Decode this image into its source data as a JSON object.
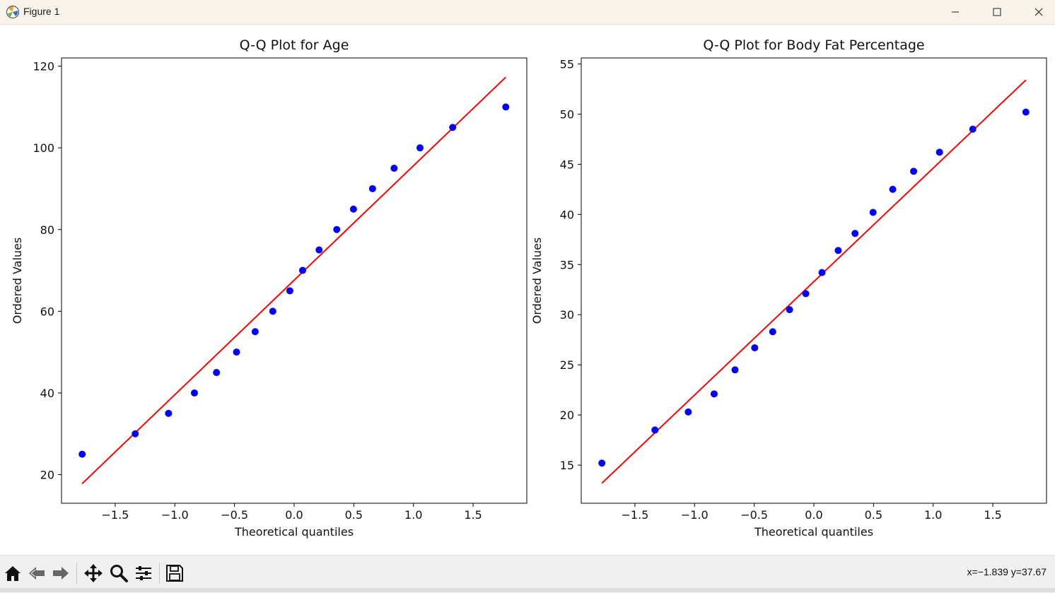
{
  "window": {
    "title": "Figure 1",
    "icons": {
      "app": "matplotlib-icon",
      "minimize": "minimize-icon",
      "maximize": "maximize-icon",
      "close": "close-icon"
    }
  },
  "toolbar": {
    "tools": [
      {
        "name": "home-icon",
        "tip": "Home"
      },
      {
        "name": "back-icon",
        "tip": "Back"
      },
      {
        "name": "forward-icon",
        "tip": "Forward"
      },
      {
        "name": "pan-icon",
        "tip": "Pan"
      },
      {
        "name": "zoom-icon",
        "tip": "Zoom"
      },
      {
        "name": "configure-subplots-icon",
        "tip": "Subplots"
      },
      {
        "name": "save-icon",
        "tip": "Save"
      }
    ],
    "coords": "x=−1.839 y=37.67"
  },
  "colors": {
    "points": "#0000ff",
    "line": "#ff0000",
    "axes": "#000000"
  },
  "chart_data": [
    {
      "type": "scatter",
      "title": "Q-Q Plot for Age",
      "xlabel": "Theoretical quantiles",
      "ylabel": "Ordered Values",
      "xlim": [
        -1.95,
        1.95
      ],
      "ylim": [
        13,
        122
      ],
      "xticks": [
        -1.5,
        -1.0,
        -0.5,
        0.0,
        0.5,
        1.0,
        1.5
      ],
      "xtick_labels": [
        "−1.5",
        "−1.0",
        "−0.5",
        "0.0",
        "0.5",
        "1.0",
        "1.5"
      ],
      "yticks": [
        20,
        40,
        60,
        80,
        100,
        120
      ],
      "ytick_labels": [
        "20",
        "40",
        "60",
        "80",
        "100",
        "120"
      ],
      "grid": false,
      "x": [
        -1.777,
        -1.332,
        -1.053,
        -0.836,
        -0.651,
        -0.483,
        -0.327,
        -0.179,
        -0.036,
        0.071,
        0.209,
        0.357,
        0.497,
        0.657,
        0.838,
        1.055,
        1.329,
        1.774
      ],
      "y": [
        25,
        30,
        35,
        40,
        45,
        50,
        55,
        60,
        65,
        70,
        75,
        80,
        85,
        90,
        95,
        100,
        105,
        110
      ],
      "fit_line": {
        "x": [
          -1.777,
          1.774
        ],
        "y": [
          17.8,
          117.3
        ]
      }
    },
    {
      "type": "scatter",
      "title": "Q-Q Plot for Body Fat Percentage",
      "xlabel": "Theoretical quantiles",
      "ylabel": "Ordered Values",
      "xlim": [
        -1.95,
        1.95
      ],
      "ylim": [
        11.2,
        55.6
      ],
      "xticks": [
        -1.5,
        -1.0,
        -0.5,
        0.0,
        0.5,
        1.0,
        1.5
      ],
      "xtick_labels": [
        "−1.5",
        "−1.0",
        "−0.5",
        "0.0",
        "0.5",
        "1.0",
        "1.5"
      ],
      "yticks": [
        15,
        20,
        25,
        30,
        35,
        40,
        45,
        50,
        55
      ],
      "ytick_labels": [
        "15",
        "20",
        "25",
        "30",
        "35",
        "40",
        "45",
        "50",
        "55"
      ],
      "grid": false,
      "x": [
        -1.777,
        -1.332,
        -1.053,
        -0.836,
        -0.661,
        -0.496,
        -0.345,
        -0.204,
        -0.068,
        0.068,
        0.204,
        0.345,
        0.496,
        0.661,
        0.836,
        1.053,
        1.332,
        1.777
      ],
      "y": [
        15.2,
        18.5,
        20.3,
        22.1,
        24.5,
        26.7,
        28.3,
        30.5,
        32.1,
        34.2,
        36.4,
        38.1,
        40.2,
        42.5,
        44.3,
        46.2,
        48.5,
        50.2
      ],
      "fit_line": {
        "x": [
          -1.777,
          1.777
        ],
        "y": [
          13.2,
          53.4
        ]
      }
    }
  ]
}
